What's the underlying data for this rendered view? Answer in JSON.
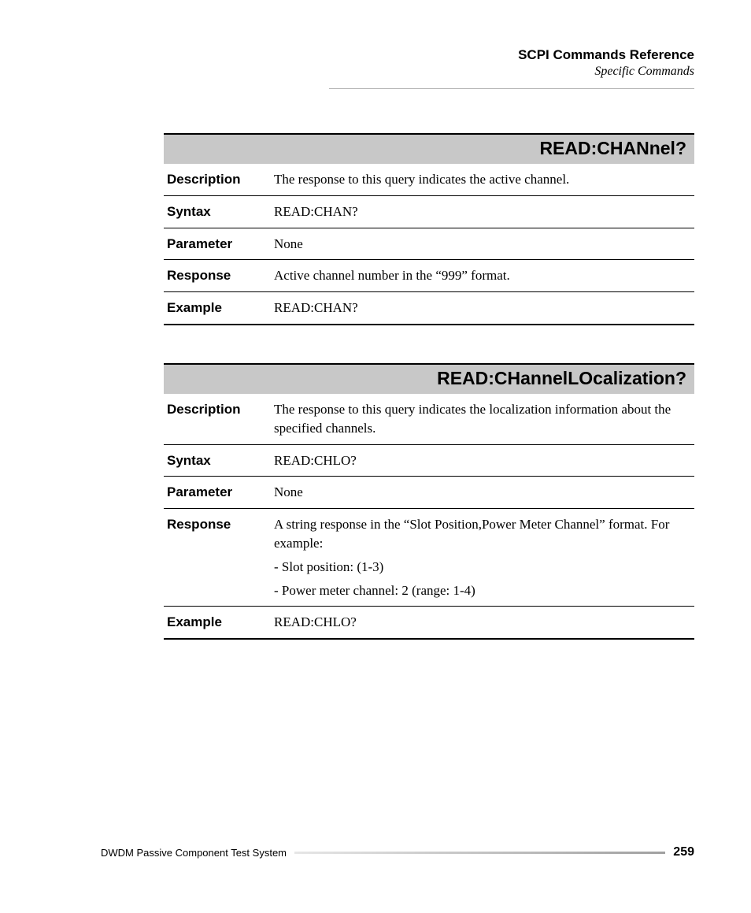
{
  "header": {
    "title": "SCPI Commands Reference",
    "subtitle": "Specific Commands"
  },
  "commands": [
    {
      "title": "READ:CHANnel?",
      "rows": [
        {
          "label": "Description",
          "value": "The response to this query indicates the active channel."
        },
        {
          "label": "Syntax",
          "value": "READ:CHAN?"
        },
        {
          "label": "Parameter",
          "value": "None"
        },
        {
          "label": "Response",
          "value": "Active channel number in the “999” format."
        },
        {
          "label": "Example",
          "value": "READ:CHAN?"
        }
      ]
    },
    {
      "title": "READ:CHannelLOcalization?",
      "rows": [
        {
          "label": "Description",
          "value": "The response to this query indicates the localization information about the specified channels."
        },
        {
          "label": "Syntax",
          "value": "READ:CHLO?"
        },
        {
          "label": "Parameter",
          "value": "None"
        },
        {
          "label": "Response",
          "value": "A string response in the “Slot Position,Power Meter Channel” format. For example:",
          "sub1": "- Slot position: (1-3)",
          "sub2": "- Power meter channel: 2 (range: 1-4)"
        },
        {
          "label": "Example",
          "value": "READ:CHLO?"
        }
      ]
    }
  ],
  "footer": {
    "text": "DWDM Passive Component Test System",
    "page": "259"
  }
}
